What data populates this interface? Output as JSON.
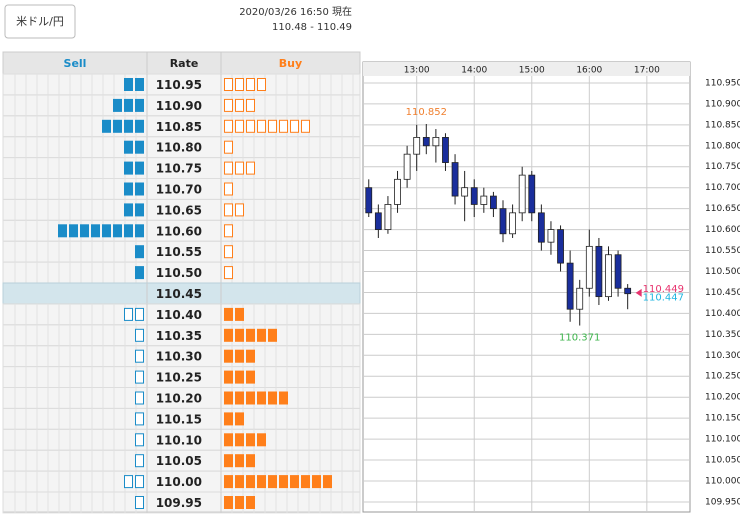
{
  "header": {
    "pair_button": "米ドル/円",
    "timestamp": "2020/03/26 16:50 現在",
    "range": "110.48 - 110.49"
  },
  "orderbook": {
    "headers": [
      "Sell",
      "Rate",
      "Buy"
    ],
    "sell_color": "#1a8cc8",
    "buy_color": "#ff7f1a",
    "rows": [
      {
        "rate": "110.95",
        "sell": 2,
        "buy": 4
      },
      {
        "rate": "110.90",
        "sell": 3,
        "buy": 3
      },
      {
        "rate": "110.85",
        "sell": 4,
        "buy": 8
      },
      {
        "rate": "110.80",
        "sell": 2,
        "buy": 1
      },
      {
        "rate": "110.75",
        "sell": 2,
        "buy": 3
      },
      {
        "rate": "110.70",
        "sell": 2,
        "buy": 1
      },
      {
        "rate": "110.65",
        "sell": 2,
        "buy": 2
      },
      {
        "rate": "110.60",
        "sell": 8,
        "buy": 1
      },
      {
        "rate": "110.55",
        "sell": 1,
        "buy": 1
      },
      {
        "rate": "110.50",
        "sell": 1,
        "buy": 1
      },
      {
        "rate": "110.45",
        "highlight": true
      },
      {
        "rate": "110.40",
        "sell": 2,
        "buy": 2
      },
      {
        "rate": "110.35",
        "sell": 1,
        "buy": 5
      },
      {
        "rate": "110.30",
        "sell": 1,
        "buy": 3
      },
      {
        "rate": "110.25",
        "sell": 1,
        "buy": 3
      },
      {
        "rate": "110.20",
        "sell": 1,
        "buy": 6
      },
      {
        "rate": "110.15",
        "sell": 1,
        "buy": 2
      },
      {
        "rate": "110.10",
        "sell": 1,
        "buy": 4
      },
      {
        "rate": "110.05",
        "sell": 1,
        "buy": 3
      },
      {
        "rate": "110.00",
        "sell": 2,
        "buy": 10
      },
      {
        "rate": "109.95",
        "sell": 1,
        "buy": 3
      }
    ]
  },
  "chart_data": {
    "type": "candlestick",
    "up_color": "#ffffff",
    "down_color": "#1a2e9c",
    "grid": true,
    "x": [
      "12:10",
      "12:20",
      "12:30",
      "12:40",
      "12:50",
      "13:00",
      "13:10",
      "13:20",
      "13:30",
      "13:40",
      "13:50",
      "14:00",
      "14:10",
      "14:20",
      "14:30",
      "14:40",
      "14:50",
      "15:00",
      "15:10",
      "15:20",
      "15:30",
      "15:40",
      "15:50",
      "16:00",
      "16:10",
      "16:20",
      "16:30",
      "16:40"
    ],
    "open": [
      110.7,
      110.64,
      110.6,
      110.66,
      110.72,
      110.78,
      110.82,
      110.8,
      110.82,
      110.76,
      110.68,
      110.7,
      110.66,
      110.68,
      110.65,
      110.59,
      110.64,
      110.73,
      110.64,
      110.57,
      110.6,
      110.52,
      110.41,
      110.46,
      110.56,
      110.44,
      110.54,
      110.46
    ],
    "high": [
      110.72,
      110.66,
      110.68,
      110.74,
      110.8,
      110.85,
      110.852,
      110.84,
      110.83,
      110.78,
      110.74,
      110.72,
      110.7,
      110.69,
      110.67,
      110.66,
      110.75,
      110.74,
      110.66,
      110.62,
      110.61,
      110.55,
      110.48,
      110.6,
      110.58,
      110.56,
      110.55,
      110.47
    ],
    "low": [
      110.63,
      110.58,
      110.59,
      110.64,
      110.7,
      110.74,
      110.78,
      110.76,
      110.74,
      110.66,
      110.62,
      110.63,
      110.64,
      110.63,
      110.57,
      110.58,
      110.62,
      110.62,
      110.55,
      110.54,
      110.5,
      110.38,
      110.371,
      110.44,
      110.42,
      110.43,
      110.44,
      110.41
    ],
    "close": [
      110.64,
      110.6,
      110.66,
      110.72,
      110.78,
      110.82,
      110.8,
      110.82,
      110.76,
      110.68,
      110.7,
      110.66,
      110.68,
      110.65,
      110.59,
      110.64,
      110.73,
      110.64,
      110.57,
      110.6,
      110.52,
      110.41,
      110.46,
      110.56,
      110.44,
      110.54,
      110.46,
      110.447
    ],
    "xlim": [
      "12:04",
      "17:45"
    ],
    "xticks": [
      "13:00",
      "14:00",
      "15:00",
      "16:00",
      "17:00"
    ],
    "ylim": [
      109.926,
      111.0
    ],
    "yticks": [
      {
        "value": 110.95,
        "label": "110.950"
      },
      {
        "value": 110.9,
        "label": "110.900"
      },
      {
        "value": 110.85,
        "label": "110.850"
      },
      {
        "value": 110.8,
        "label": "110.800"
      },
      {
        "value": 110.75,
        "label": "110.750"
      },
      {
        "value": 110.7,
        "label": "110.700"
      },
      {
        "value": 110.65,
        "label": "110.650"
      },
      {
        "value": 110.6,
        "label": "110.600"
      },
      {
        "value": 110.55,
        "label": "110.550"
      },
      {
        "value": 110.5,
        "label": "110.500"
      },
      {
        "value": 110.45,
        "label": "110.450"
      },
      {
        "value": 110.4,
        "label": "110.400"
      },
      {
        "value": 110.35,
        "label": "110.350"
      },
      {
        "value": 110.3,
        "label": "110.300"
      },
      {
        "value": 110.25,
        "label": "110.250"
      },
      {
        "value": 110.2,
        "label": "110.200"
      },
      {
        "value": 110.15,
        "label": "110.150"
      },
      {
        "value": 110.1,
        "label": "110.100"
      },
      {
        "value": 110.05,
        "label": "110.050"
      },
      {
        "value": 110.0,
        "label": "110.000"
      },
      {
        "value": 109.95,
        "label": "109.950"
      }
    ],
    "markers": [
      {
        "value": 110.852,
        "color": "#f08030",
        "at": "13:10",
        "place": "above"
      },
      {
        "value": 110.371,
        "color": "#3cb44b",
        "at": "15:50",
        "place": "below"
      },
      {
        "value": 110.449,
        "color": "#e8336e",
        "place": "right"
      },
      {
        "value": 110.447,
        "color": "#1fb6e0",
        "place": "right"
      }
    ]
  }
}
